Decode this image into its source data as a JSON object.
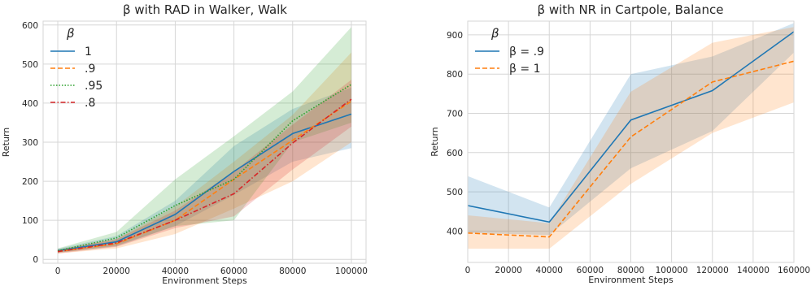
{
  "chart_data": [
    {
      "type": "line",
      "title": "β with RAD in Walker, Walk",
      "xlabel": "Environment Steps",
      "ylabel": "Return",
      "xlim": [
        -5000,
        105000
      ],
      "ylim": [
        -10,
        610
      ],
      "xticks": [
        0,
        20000,
        40000,
        60000,
        80000,
        100000
      ],
      "yticks": [
        0,
        100,
        200,
        300,
        400,
        500,
        600
      ],
      "legend_title": "β",
      "legend_position": "upper-left",
      "grid": true,
      "x": [
        0,
        20000,
        40000,
        60000,
        80000,
        100000
      ],
      "series": [
        {
          "name": "1",
          "color": "#1f77b4",
          "dash": "solid",
          "values": [
            22,
            45,
            115,
            225,
            322,
            372
          ],
          "lower": [
            17,
            33,
            85,
            165,
            250,
            285
          ],
          "upper": [
            27,
            60,
            150,
            290,
            385,
            440
          ]
        },
        {
          "name": ".9",
          "color": "#ff7f0e",
          "dash": "dashed",
          "values": [
            20,
            40,
            100,
            205,
            305,
            405
          ],
          "lower": [
            15,
            28,
            65,
            130,
            200,
            300
          ],
          "upper": [
            25,
            52,
            135,
            250,
            370,
            530
          ]
        },
        {
          "name": ".95",
          "color": "#2ca02c",
          "dash": "dotted",
          "values": [
            22,
            55,
            138,
            205,
            355,
            448
          ],
          "lower": [
            17,
            35,
            85,
            100,
            300,
            350
          ],
          "upper": [
            28,
            70,
            205,
            315,
            430,
            595
          ]
        },
        {
          "name": ".8",
          "color": "#d62728",
          "dash": "dashdot",
          "values": [
            20,
            42,
            100,
            168,
            298,
            410
          ],
          "lower": [
            15,
            32,
            80,
            110,
            230,
            340
          ],
          "upper": [
            25,
            52,
            125,
            225,
            345,
            460
          ]
        }
      ]
    },
    {
      "type": "line",
      "title": "β with NR in Cartpole, Balance",
      "xlabel": "Environment Steps",
      "ylabel": "Return",
      "xlim": [
        0,
        160000
      ],
      "ylim": [
        320,
        935
      ],
      "xticks": [
        0,
        20000,
        40000,
        60000,
        80000,
        100000,
        120000,
        140000,
        160000
      ],
      "yticks": [
        400,
        500,
        600,
        700,
        800,
        900
      ],
      "legend_title": "β",
      "legend_position": "upper-left",
      "grid": true,
      "x": [
        0,
        40000,
        80000,
        120000,
        160000
      ],
      "series": [
        {
          "name": "β = .9",
          "color": "#1f77b4",
          "dash": "solid",
          "values": [
            465,
            423,
            683,
            758,
            908
          ],
          "lower": [
            395,
            390,
            560,
            655,
            855
          ],
          "upper": [
            540,
            460,
            800,
            845,
            930
          ]
        },
        {
          "name": "β = 1",
          "color": "#ff7f0e",
          "dash": "dashed",
          "values": [
            395,
            385,
            640,
            780,
            833
          ],
          "lower": [
            355,
            355,
            520,
            650,
            728
          ],
          "upper": [
            440,
            420,
            755,
            880,
            920
          ]
        }
      ]
    }
  ]
}
